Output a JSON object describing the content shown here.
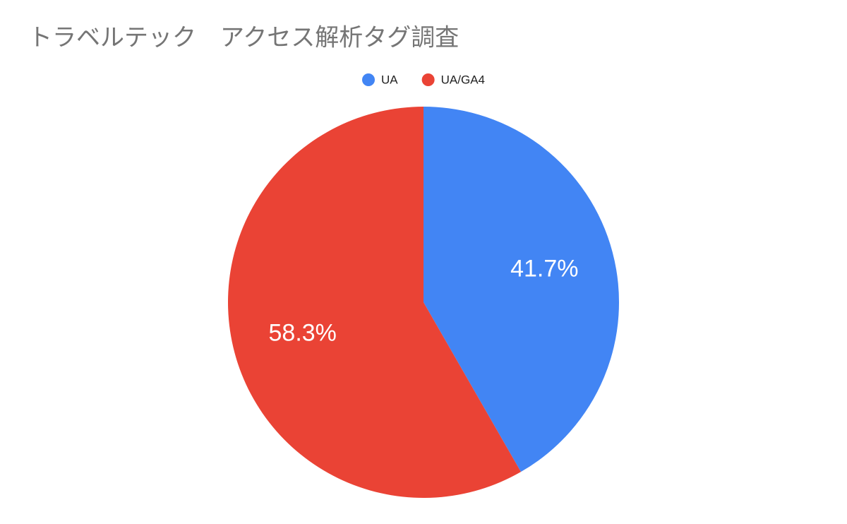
{
  "chart_data": {
    "type": "pie",
    "title": "トラベルテック　アクセス解析タグ調査",
    "categories": [
      "UA",
      "UA/GA4"
    ],
    "values": [
      41.7,
      58.3
    ],
    "value_labels": [
      "41.7%",
      "58.3%"
    ],
    "colors": [
      "#4285f4",
      "#ea4335"
    ],
    "legend": "top"
  }
}
